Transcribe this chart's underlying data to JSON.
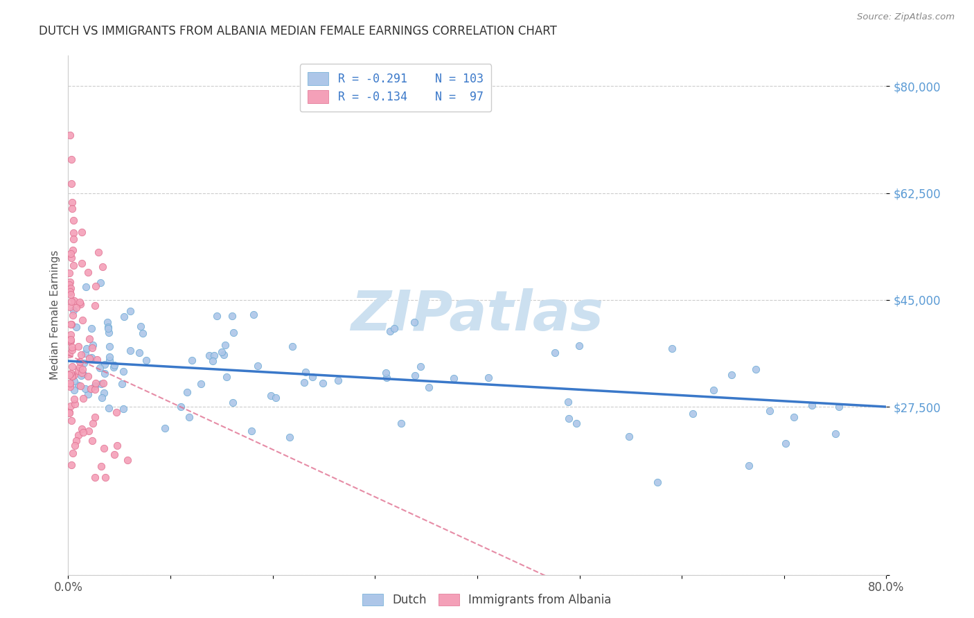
{
  "title": "DUTCH VS IMMIGRANTS FROM ALBANIA MEDIAN FEMALE EARNINGS CORRELATION CHART",
  "source": "Source: ZipAtlas.com",
  "ylabel": "Median Female Earnings",
  "dutch_color": "#adc6e8",
  "dutch_edge_color": "#6aaad4",
  "albania_color": "#f4a0b8",
  "albania_edge_color": "#e07090",
  "dutch_line_color": "#3a78c9",
  "albania_line_color": "#e07090",
  "legend_text_color": "#3a78c9",
  "right_label_color": "#5b9bd5",
  "title_color": "#333333",
  "grid_color": "#cccccc",
  "watermark_color": "#cce0f0",
  "background_color": "#ffffff",
  "seed": 123
}
